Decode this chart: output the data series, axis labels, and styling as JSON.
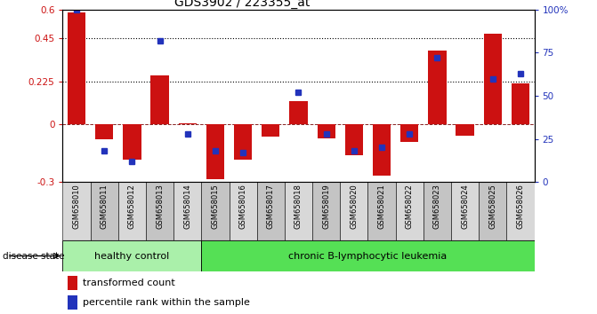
{
  "title": "GDS3902 / 223355_at",
  "samples": [
    "GSM658010",
    "GSM658011",
    "GSM658012",
    "GSM658013",
    "GSM658014",
    "GSM658015",
    "GSM658016",
    "GSM658017",
    "GSM658018",
    "GSM658019",
    "GSM658020",
    "GSM658021",
    "GSM658022",
    "GSM658023",
    "GSM658024",
    "GSM658025",
    "GSM658026"
  ],
  "red_values": [
    0.585,
    -0.075,
    -0.185,
    0.255,
    0.008,
    -0.285,
    -0.185,
    -0.065,
    0.12,
    -0.07,
    -0.16,
    -0.265,
    -0.09,
    0.385,
    -0.06,
    0.475,
    0.215
  ],
  "blue_pct": [
    100,
    18,
    12,
    82,
    28,
    18,
    17,
    null,
    52,
    28,
    18,
    20,
    28,
    72,
    null,
    60,
    63
  ],
  "bar_color": "#cc1111",
  "blue_color": "#2233bb",
  "n_healthy": 5,
  "n_leukemia": 12,
  "ylim_left": [
    -0.3,
    0.6
  ],
  "ylim_right": [
    0,
    100
  ],
  "yticks_left": [
    -0.3,
    0.0,
    0.225,
    0.45,
    0.6
  ],
  "ytick_labels_left": [
    "-0.3",
    "0",
    "0.225",
    "0.45",
    "0.6"
  ],
  "yticks_right": [
    0,
    25,
    50,
    75,
    100
  ],
  "ytick_labels_right": [
    "0",
    "25",
    "50",
    "75",
    "100%"
  ],
  "hlines": [
    0.45,
    0.225
  ],
  "healthy_color": "#aaf0aa",
  "leukemia_color": "#55e055",
  "disease_state_label": "disease state",
  "healthy_label": "healthy control",
  "leukemia_label": "chronic B-lymphocytic leukemia",
  "legend_red": "transformed count",
  "legend_blue": "percentile rank within the sample",
  "bar_width": 0.65,
  "tick_bg_even": "#d8d8d8",
  "tick_bg_odd": "#c4c4c4"
}
